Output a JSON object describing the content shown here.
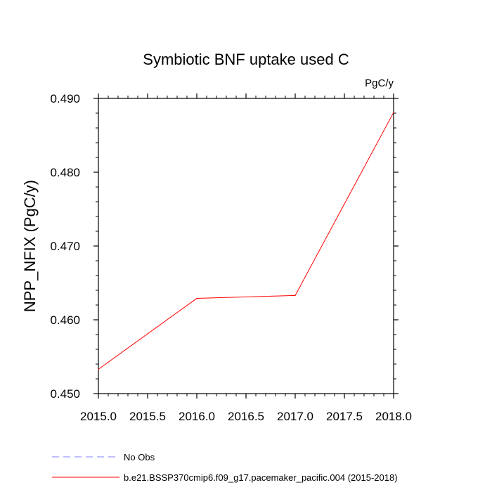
{
  "chart_data": {
    "type": "line",
    "title": "Symbiotic BNF uptake used C",
    "units_label": "PgC/y",
    "ylabel": "NPP_NFIX  (PgC/y)",
    "xlabel": "",
    "xlim": [
      2015.0,
      2018.0
    ],
    "ylim": [
      0.45,
      0.49
    ],
    "x_ticks": [
      "2015.0",
      "2015.5",
      "2016.0",
      "2016.5",
      "2017.0",
      "2017.5",
      "2018.0"
    ],
    "y_ticks": [
      "0.450",
      "0.460",
      "0.470",
      "0.480",
      "0.490"
    ],
    "grid": false,
    "legend_placement": "bottom",
    "series": [
      {
        "name": "b.e21.BSSP370cmip6.f09_g17.pacemaker_pacific.004 (2015-2018)",
        "color": "#ff0000",
        "style": "solid",
        "x": [
          2015,
          2016,
          2017,
          2018
        ],
        "y": [
          0.4533,
          0.4629,
          0.4633,
          0.4881
        ]
      }
    ],
    "legend": [
      {
        "label": "No Obs",
        "color": "#8080ff",
        "style": "dashed"
      },
      {
        "label": "b.e21.BSSP370cmip6.f09_g17.pacemaker_pacific.004 (2015-2018)",
        "color": "#ff0000",
        "style": "solid"
      }
    ]
  }
}
